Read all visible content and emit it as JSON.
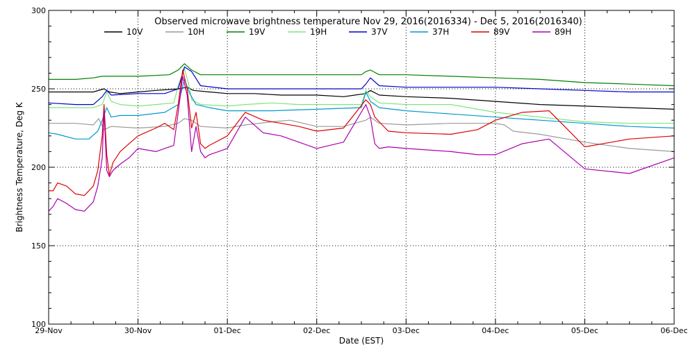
{
  "chart_data": {
    "type": "line",
    "title": "Observed microwave brightness temperature Nov 29, 2016(2016334) - Dec  5, 2016(2016340)",
    "xlabel": "Date (EST)",
    "ylabel": "Brightness Temperature, Deg K",
    "xlim": [
      "29-Nov",
      "06-Dec"
    ],
    "ylim": [
      100,
      300
    ],
    "x_ticks": [
      "29-Nov",
      "30-Nov",
      "01-Dec",
      "02-Dec",
      "03-Dec",
      "04-Dec",
      "05-Dec",
      "06-Dec"
    ],
    "y_ticks": [
      100,
      150,
      200,
      250,
      300
    ],
    "grid": true,
    "legend_position": "top",
    "x_unit_note": "x values are days after 29-Nov 00:00",
    "series": [
      {
        "name": "10V",
        "color": "#000000",
        "x": [
          0,
          0.3,
          0.5,
          0.62,
          0.68,
          0.8,
          1.0,
          1.2,
          1.45,
          1.55,
          1.62,
          1.8,
          2.0,
          2.3,
          2.6,
          3.0,
          3.3,
          3.55,
          3.6,
          3.7,
          4.0,
          4.5,
          5.0,
          5.5,
          6.0,
          6.5,
          7.0
        ],
        "y": [
          248,
          248,
          248,
          250,
          248,
          247,
          248,
          249,
          250,
          251,
          249,
          248,
          247,
          247,
          246,
          246,
          245,
          247,
          249,
          246,
          245,
          244,
          242,
          240,
          239,
          238,
          237
        ]
      },
      {
        "name": "10H",
        "color": "#999999",
        "x": [
          0,
          0.3,
          0.5,
          0.56,
          0.62,
          0.7,
          1.0,
          1.3,
          1.45,
          1.52,
          1.6,
          1.7,
          2.0,
          2.2,
          2.5,
          2.7,
          3.0,
          3.3,
          3.55,
          3.6,
          3.7,
          4.0,
          4.5,
          5.0,
          5.1,
          5.2,
          5.5,
          5.8,
          6.0,
          6.5,
          7.0
        ],
        "y": [
          228,
          228,
          227,
          231,
          224,
          226,
          225,
          226,
          228,
          231,
          230,
          226,
          225,
          227,
          229,
          230,
          226,
          226,
          230,
          232,
          228,
          227,
          228,
          228,
          227,
          223,
          221,
          218,
          216,
          212,
          210
        ]
      },
      {
        "name": "19V",
        "color": "#008000",
        "x": [
          0,
          0.3,
          0.5,
          0.6,
          0.7,
          1.0,
          1.35,
          1.45,
          1.52,
          1.6,
          1.7,
          2.0,
          2.5,
          3.0,
          3.5,
          3.55,
          3.6,
          3.7,
          4.0,
          4.5,
          5.0,
          5.5,
          6.0,
          6.5,
          7.0
        ],
        "y": [
          256,
          256,
          257,
          258,
          258,
          258,
          259,
          262,
          266,
          262,
          259,
          259,
          259,
          259,
          259,
          261,
          262,
          259,
          259,
          258,
          257,
          256,
          254,
          253,
          252
        ]
      },
      {
        "name": "19H",
        "color": "#7FE57F",
        "x": [
          0,
          0.3,
          0.5,
          0.6,
          0.65,
          0.7,
          0.8,
          1.0,
          1.2,
          1.4,
          1.45,
          1.52,
          1.58,
          1.6,
          1.7,
          2.0,
          2.2,
          2.5,
          2.8,
          3.0,
          3.5,
          3.55,
          3.6,
          3.7,
          4.0,
          4.5,
          4.7,
          5.0,
          5.5,
          6.0,
          6.5,
          7.0
        ],
        "y": [
          238,
          238,
          238,
          240,
          248,
          242,
          240,
          239,
          240,
          241,
          252,
          263,
          250,
          243,
          240,
          239,
          240,
          241,
          240,
          240,
          240,
          249,
          245,
          241,
          240,
          240,
          238,
          235,
          232,
          229,
          228,
          228
        ]
      },
      {
        "name": "37V",
        "color": "#0000CC",
        "x": [
          0,
          0.3,
          0.5,
          0.6,
          0.65,
          0.7,
          1.0,
          1.3,
          1.45,
          1.52,
          1.6,
          1.7,
          2.0,
          2.5,
          3.0,
          3.5,
          3.55,
          3.6,
          3.7,
          4.0,
          4.5,
          5.0,
          5.5,
          6.0,
          6.5,
          7.0
        ],
        "y": [
          241,
          240,
          240,
          245,
          249,
          246,
          247,
          247,
          250,
          264,
          261,
          252,
          250,
          250,
          250,
          250,
          253,
          257,
          252,
          251,
          251,
          251,
          250,
          249,
          248,
          248
        ]
      },
      {
        "name": "37H",
        "color": "#0099CC",
        "x": [
          0,
          0.1,
          0.3,
          0.45,
          0.55,
          0.6,
          0.65,
          0.7,
          0.8,
          1.0,
          1.3,
          1.45,
          1.52,
          1.58,
          1.65,
          1.8,
          2.0,
          2.5,
          3.0,
          3.5,
          3.55,
          3.6,
          3.7,
          4.0,
          4.5,
          5.0,
          5.5,
          6.0,
          6.5,
          7.0
        ],
        "y": [
          222,
          221,
          218,
          218,
          223,
          230,
          238,
          232,
          233,
          233,
          235,
          240,
          256,
          247,
          240,
          238,
          236,
          236,
          237,
          238,
          248,
          242,
          238,
          236,
          234,
          232,
          230,
          228,
          226,
          225
        ]
      },
      {
        "name": "89V",
        "color": "#DD0000",
        "x": [
          0,
          0.05,
          0.1,
          0.2,
          0.3,
          0.4,
          0.5,
          0.55,
          0.6,
          0.62,
          0.65,
          0.68,
          0.72,
          0.8,
          0.9,
          1.0,
          1.2,
          1.3,
          1.4,
          1.45,
          1.5,
          1.55,
          1.6,
          1.65,
          1.7,
          1.75,
          1.8,
          1.9,
          2.0,
          2.2,
          2.4,
          2.6,
          2.8,
          3.0,
          3.3,
          3.55,
          3.6,
          3.65,
          3.7,
          3.8,
          4.0,
          4.5,
          4.8,
          5.0,
          5.3,
          5.6,
          6.0,
          6.5,
          7.0
        ],
        "y": [
          185,
          185,
          190,
          188,
          183,
          182,
          188,
          198,
          220,
          240,
          208,
          195,
          203,
          210,
          215,
          220,
          225,
          228,
          224,
          240,
          262,
          250,
          225,
          235,
          215,
          212,
          214,
          217,
          220,
          235,
          230,
          228,
          226,
          223,
          225,
          243,
          240,
          232,
          229,
          223,
          222,
          221,
          224,
          230,
          235,
          236,
          213,
          218,
          220
        ]
      },
      {
        "name": "89H",
        "color": "#AA00AA",
        "x": [
          0,
          0.05,
          0.1,
          0.2,
          0.3,
          0.4,
          0.5,
          0.55,
          0.6,
          0.62,
          0.65,
          0.68,
          0.72,
          0.8,
          0.9,
          1.0,
          1.2,
          1.3,
          1.4,
          1.45,
          1.5,
          1.55,
          1.6,
          1.65,
          1.7,
          1.75,
          1.8,
          1.9,
          2.0,
          2.2,
          2.4,
          2.6,
          2.8,
          3.0,
          3.3,
          3.55,
          3.6,
          3.65,
          3.7,
          3.8,
          4.0,
          4.5,
          4.8,
          5.0,
          5.3,
          5.6,
          6.0,
          6.5,
          7.0
        ],
        "y": [
          172,
          175,
          180,
          177,
          173,
          172,
          178,
          188,
          206,
          236,
          198,
          194,
          198,
          202,
          206,
          212,
          210,
          212,
          214,
          235,
          258,
          246,
          210,
          226,
          210,
          206,
          208,
          210,
          212,
          232,
          222,
          220,
          216,
          212,
          216,
          240,
          232,
          215,
          212,
          213,
          212,
          210,
          208,
          208,
          215,
          218,
          199,
          196,
          206
        ]
      }
    ]
  }
}
